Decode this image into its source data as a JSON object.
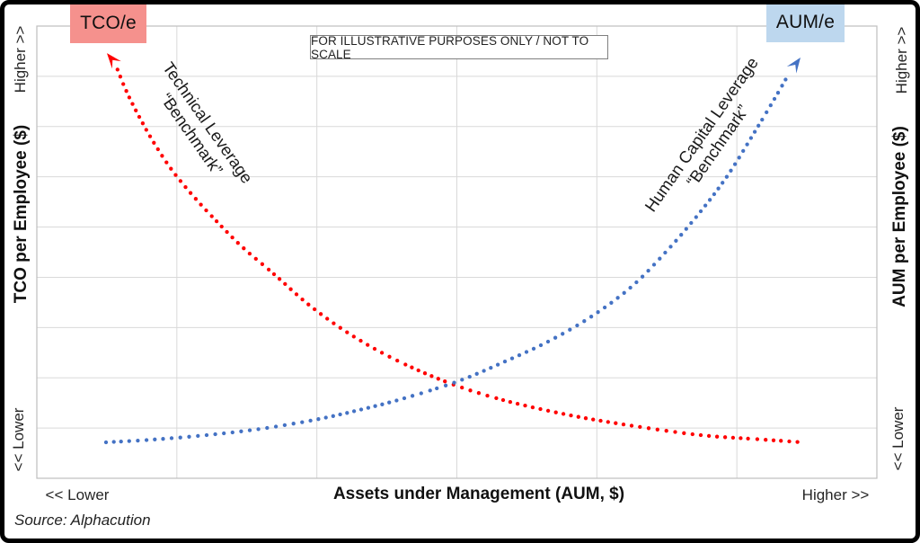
{
  "legend": {
    "tco": "TCO/e",
    "aum": "AUM/e"
  },
  "disclaimer": "FOR ILLUSTRATIVE PURPOSES ONLY / NOT TO SCALE",
  "axes": {
    "left_title": "TCO per Employee ($)",
    "right_title": "AUM per Employee ($)",
    "x_title": "Assets under Management (AUM, $)",
    "left_top": "Higher >>",
    "left_bottom": "<< Lower",
    "right_top": "Higher >>",
    "right_bottom": "<< Lower",
    "x_left": "<< Lower",
    "x_right": "Higher >>"
  },
  "curve_labels": {
    "technical_line1": "Technical Leverage",
    "technical_line2": "“Benchmark”",
    "human_line1": "Human Capital Leverage",
    "human_line2": "“Benchmark”"
  },
  "source": "Source: Alphacution",
  "colors": {
    "tco_curve": "#FF0000",
    "aum_curve": "#4472C4",
    "tco_box_bg": "#F5918D",
    "aum_box_bg": "#BDD7EE",
    "grid": "#D9D9D9",
    "plot_border": "#BFBFBF",
    "frame": "#000000"
  },
  "chart_data": {
    "type": "line",
    "title": "",
    "note": "FOR ILLUSTRATIVE PURPOSES ONLY / NOT TO SCALE",
    "xlabel": "Assets under Management (AUM, $)",
    "ylabel_left": "TCO per Employee ($)",
    "ylabel_right": "AUM per Employee ($)",
    "x_axis_qualitative": [
      "<< Lower",
      "Higher >>"
    ],
    "y_axis_qualitative": [
      "<< Lower",
      "Higher >>"
    ],
    "grid": {
      "columns": 6,
      "rows": 9,
      "visible": true
    },
    "legend_position": "top-corners",
    "series": [
      {
        "name": "TCO/e — Technical Leverage “Benchmark”",
        "style": "dotted",
        "color": "#FF0000",
        "trend": "decreasing-convex (high at low AUM, flattens toward higher AUM)",
        "arrow": "start",
        "arrow_tip": [
          0.0834,
          0.94
        ],
        "points": [
          [
            0.093,
            0.9185
          ],
          [
            0.1059,
            0.8589
          ],
          [
            0.1219,
            0.7992
          ],
          [
            0.1401,
            0.7396
          ],
          [
            0.1615,
            0.6799
          ],
          [
            0.1861,
            0.6243
          ],
          [
            0.2128,
            0.5706
          ],
          [
            0.2449,
            0.5109
          ],
          [
            0.2824,
            0.4513
          ],
          [
            0.3251,
            0.3817
          ],
          [
            0.3733,
            0.3181
          ],
          [
            0.4267,
            0.2624
          ],
          [
            0.4909,
            0.2107
          ],
          [
            0.5551,
            0.173
          ],
          [
            0.6299,
            0.1412
          ],
          [
            0.7048,
            0.1173
          ],
          [
            0.7904,
            0.0954
          ],
          [
            0.8652,
            0.0855
          ],
          [
            0.9112,
            0.0795
          ]
        ]
      },
      {
        "name": "AUM/e — Human Capital Leverage “Benchmark”",
        "style": "dotted",
        "color": "#4472C4",
        "trend": "increasing-convex (low at low AUM, rises steeply toward higher AUM)",
        "arrow": "end",
        "arrow_tip": [
          0.9091,
          0.9304
        ],
        "points": [
          [
            0.0824,
            0.0795
          ],
          [
            0.138,
            0.0855
          ],
          [
            0.2021,
            0.0954
          ],
          [
            0.2663,
            0.1093
          ],
          [
            0.3305,
            0.1292
          ],
          [
            0.384,
            0.1511
          ],
          [
            0.4374,
            0.1769
          ],
          [
            0.5016,
            0.2147
          ],
          [
            0.5551,
            0.2565
          ],
          [
            0.6086,
            0.3022
          ],
          [
            0.662,
            0.3599
          ],
          [
            0.7102,
            0.4274
          ],
          [
            0.7529,
            0.5089
          ],
          [
            0.7904,
            0.5905
          ],
          [
            0.8225,
            0.67
          ],
          [
            0.8524,
            0.7594
          ],
          [
            0.8781,
            0.839
          ],
          [
            0.8952,
            0.8946
          ]
        ]
      }
    ]
  }
}
